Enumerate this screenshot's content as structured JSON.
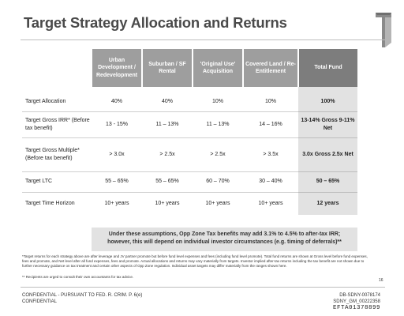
{
  "title": "Target Strategy Allocation and Returns",
  "logo_icon": "tower-logo-icon",
  "table": {
    "headers": [
      "",
      "Urban Development / Redevelopment",
      "Suburban / SF Rental",
      "'Original Use' Acquisition",
      "Covered Land / Re-Entitlement",
      "Total Fund"
    ],
    "rows": [
      {
        "label": "Target Allocation",
        "values": [
          "40%",
          "40%",
          "10%",
          "10%"
        ],
        "total": "100%"
      },
      {
        "label": "Target Gross IRR* (Before tax benefit)",
        "values": [
          "13 - 15%",
          "11 – 13%",
          "11 – 13%",
          "14 – 16%"
        ],
        "total": "13-14% Gross 9-11% Net"
      },
      {
        "label": "Target Gross Multiple* (Before tax benefit)",
        "values": [
          "> 3.0x",
          "> 2.5x",
          "> 2.5x",
          "> 3.5x"
        ],
        "total": "3.0x Gross 2.5x Net"
      },
      {
        "label": "Target LTC",
        "values": [
          "55 – 65%",
          "55 – 65%",
          "60 – 70%",
          "30 – 40%"
        ],
        "total": "50 – 65%"
      },
      {
        "label": "Target Time Horizon",
        "values": [
          "10+ years",
          "10+ years",
          "10+ years",
          "10+ years"
        ],
        "total": "12 years"
      }
    ]
  },
  "callout": "Under these assumptions, Opp Zone Tax benefits may add 3.1% to 4.5% to after-tax IRR; however, this will depend on individual investor circumstances (e.g. timing of deferrals)**",
  "footnote1": "*Target returns for each strategy above are after leverage and JV partner promote but before fund level expenses and fees (including fund level promote). Total fund returns are shown at Gross level before fund expenses, fees and promote, and Net level after all fund expenses, fees and promote. Actual allocations and returns may vary materially from targets. Investor implied after-tax returns including the tax benefit are not shown due to further necessary guidance on tax treatment and certain other aspects of Opp Zone regulation. Individual asset targets may differ materially from the ranges shown here.",
  "footnote2": "** Recipients are urged to consult their own accountants for tax advice.",
  "page_number": "16",
  "footer_left_1": "CONFIDENTIAL - PURSUANT TO FED. R. CRIM. P. 6(e)",
  "footer_left_2": "CONFIDENTIAL",
  "footer_right_1": "DB-SDNY-0078174",
  "footer_right_2": "SDNY_GM_00222358",
  "efta": "EFTA01378899"
}
